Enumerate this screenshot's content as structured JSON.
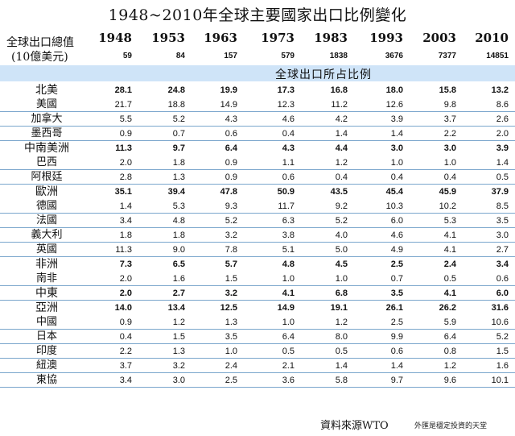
{
  "title": "1948~2010年全球主要國家出口比例變化",
  "header": {
    "label_line1": "全球出口總值",
    "label_line2": "(10億美元)",
    "years": [
      "1948",
      "1953",
      "1963",
      "1973",
      "1983",
      "1993",
      "2003",
      "2010"
    ],
    "totals": [
      "59",
      "84",
      "157",
      "579",
      "1838",
      "3676",
      "7377",
      "14851"
    ]
  },
  "section_label": "全球出口所占比例",
  "groups": [
    {
      "rows": [
        {
          "name": "北美",
          "bold": true,
          "values": [
            "28.1",
            "24.8",
            "19.9",
            "17.3",
            "16.8",
            "18.0",
            "15.8",
            "13.2"
          ]
        },
        {
          "name": "美國",
          "bold": false,
          "values": [
            "21.7",
            "18.8",
            "14.9",
            "12.3",
            "11.2",
            "12.6",
            "9.8",
            "8.6"
          ]
        }
      ]
    },
    {
      "rows": [
        {
          "name": "加拿大",
          "bold": false,
          "values": [
            "5.5",
            "5.2",
            "4.3",
            "4.6",
            "4.2",
            "3.9",
            "3.7",
            "2.6"
          ]
        }
      ]
    },
    {
      "rows": [
        {
          "name": "墨西哥",
          "bold": false,
          "values": [
            "0.9",
            "0.7",
            "0.6",
            "0.4",
            "1.4",
            "1.4",
            "2.2",
            "2.0"
          ]
        }
      ]
    },
    {
      "rows": [
        {
          "name": "中南美洲",
          "bold": true,
          "values": [
            "11.3",
            "9.7",
            "6.4",
            "4.3",
            "4.4",
            "3.0",
            "3.0",
            "3.9"
          ]
        },
        {
          "name": "巴西",
          "bold": false,
          "values": [
            "2.0",
            "1.8",
            "0.9",
            "1.1",
            "1.2",
            "1.0",
            "1.0",
            "1.4"
          ]
        }
      ]
    },
    {
      "rows": [
        {
          "name": "阿根廷",
          "bold": false,
          "values": [
            "2.8",
            "1.3",
            "0.9",
            "0.6",
            "0.4",
            "0.4",
            "0.4",
            "0.5"
          ]
        }
      ]
    },
    {
      "rows": [
        {
          "name": "歐洲",
          "bold": true,
          "values": [
            "35.1",
            "39.4",
            "47.8",
            "50.9",
            "43.5",
            "45.4",
            "45.9",
            "37.9"
          ]
        },
        {
          "name": "德國",
          "bold": false,
          "values": [
            "1.4",
            "5.3",
            "9.3",
            "11.7",
            "9.2",
            "10.3",
            "10.2",
            "8.5"
          ]
        }
      ]
    },
    {
      "rows": [
        {
          "name": "法國",
          "bold": false,
          "values": [
            "3.4",
            "4.8",
            "5.2",
            "6.3",
            "5.2",
            "6.0",
            "5.3",
            "3.5"
          ]
        }
      ]
    },
    {
      "rows": [
        {
          "name": "義大利",
          "bold": false,
          "values": [
            "1.8",
            "1.8",
            "3.2",
            "3.8",
            "4.0",
            "4.6",
            "4.1",
            "3.0"
          ]
        }
      ]
    },
    {
      "rows": [
        {
          "name": "英國",
          "bold": false,
          "values": [
            "11.3",
            "9.0",
            "7.8",
            "5.1",
            "5.0",
            "4.9",
            "4.1",
            "2.7"
          ]
        }
      ]
    },
    {
      "rows": [
        {
          "name": "非洲",
          "bold": true,
          "values": [
            "7.3",
            "6.5",
            "5.7",
            "4.8",
            "4.5",
            "2.5",
            "2.4",
            "3.4"
          ]
        },
        {
          "name": "南非",
          "bold": false,
          "values": [
            "2.0",
            "1.6",
            "1.5",
            "1.0",
            "1.0",
            "0.7",
            "0.5",
            "0.6"
          ]
        }
      ]
    },
    {
      "rows": [
        {
          "name": "中東",
          "bold": true,
          "values": [
            "2.0",
            "2.7",
            "3.2",
            "4.1",
            "6.8",
            "3.5",
            "4.1",
            "6.0"
          ]
        }
      ]
    },
    {
      "rows": [
        {
          "name": "亞洲",
          "bold": true,
          "values": [
            "14.0",
            "13.4",
            "12.5",
            "14.9",
            "19.1",
            "26.1",
            "26.2",
            "31.6"
          ]
        },
        {
          "name": "中國",
          "bold": false,
          "values": [
            "0.9",
            "1.2",
            "1.3",
            "1.0",
            "1.2",
            "2.5",
            "5.9",
            "10.6"
          ]
        }
      ]
    },
    {
      "rows": [
        {
          "name": "日本",
          "bold": false,
          "values": [
            "0.4",
            "1.5",
            "3.5",
            "6.4",
            "8.0",
            "9.9",
            "6.4",
            "5.2"
          ]
        }
      ]
    },
    {
      "rows": [
        {
          "name": "印度",
          "bold": false,
          "values": [
            "2.2",
            "1.3",
            "1.0",
            "0.5",
            "0.5",
            "0.6",
            "0.8",
            "1.5"
          ]
        }
      ]
    },
    {
      "rows": [
        {
          "name": "紐澳",
          "bold": false,
          "values": [
            "3.7",
            "3.2",
            "2.4",
            "2.1",
            "1.4",
            "1.4",
            "1.2",
            "1.6"
          ]
        }
      ]
    },
    {
      "rows": [
        {
          "name": "東協",
          "bold": false,
          "values": [
            "3.4",
            "3.0",
            "2.5",
            "3.6",
            "5.8",
            "9.7",
            "9.6",
            "10.1"
          ]
        }
      ]
    }
  ],
  "source": "資料來源WTO",
  "credit": "外匯是穩定投資的天堂"
}
